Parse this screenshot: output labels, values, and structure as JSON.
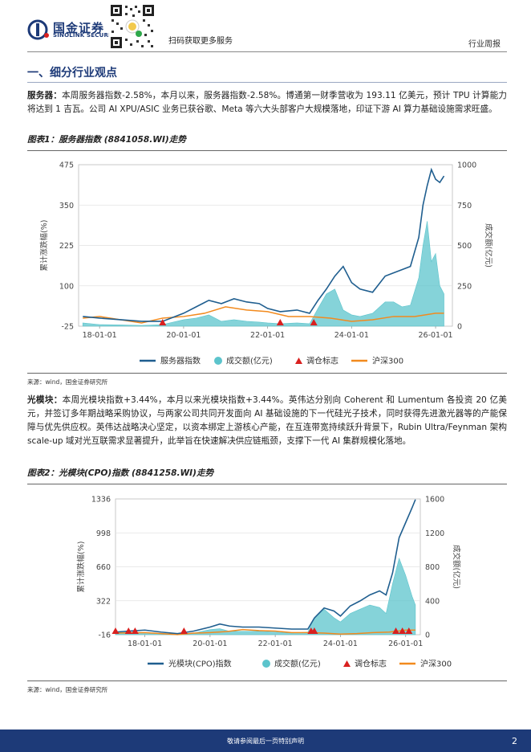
{
  "header": {
    "brand_cn": "国金证券",
    "brand_en": "SINOLINK SECURITIES",
    "scan_text": "扫码获取更多服务",
    "report_type": "行业周报"
  },
  "section": {
    "title": "一、细分行业观点"
  },
  "para1": {
    "lead": "服务器：",
    "text": "本周服务器指数-2.58%，本月以来，服务器指数-2.58%。博通第一财季营收为 193.11 亿美元，预计 TPU 计算能力将达到 1 吉瓦。公司 AI XPU/ASIC 业务已获谷歌、Meta 等六大头部客户大规模落地，印证下游 AI 算力基础设施需求旺盛。"
  },
  "para2": {
    "lead": "光模块：",
    "text": "本周光模块指数+3.44%，本月以来光模块指数+3.44%。英伟达分别向 Coherent 和 Lumentum 各投资 20 亿美元，并签订多年期战略采购协议，与两家公司共同开发面向 AI 基础设施的下一代硅光子技术，同时获得先进激光器等的产能保障与优先供应权。英伟达战略决心坚定，以资本绑定上游核心产能，在互连带宽持续跃升背景下，Rubin Ultra/Feynman 架构 scale-up 域对光互联需求显著提升，此举旨在快速解决供应链瓶颈，支撑下一代 AI 集群规模化落地。"
  },
  "source_label": "来源：wind，国金证券研究所",
  "footer": {
    "disclaimer": "敬请参阅最后一页特别声明",
    "page": "2"
  },
  "colors": {
    "index_line": "#1f5e8f",
    "volume_area": "#5cc4cc",
    "hs300_line": "#f28a1e",
    "marker": "#d9201f",
    "brand": "#1d3a78"
  },
  "chart_data": [
    {
      "type": "line",
      "title": "图表1：服务器指数 (8841058.WI)走势",
      "ylabel": "累计涨跌幅(%)",
      "y2label": "成交额(亿元)",
      "ylim": [
        -25,
        475
      ],
      "y2lim": [
        0,
        1000
      ],
      "yticks": [
        "-25",
        "100",
        "225",
        "350",
        "475"
      ],
      "y2ticks": [
        "0",
        "250",
        "500",
        "750",
        "1000"
      ],
      "xlim": [
        2017.5,
        2026.4
      ],
      "xticks": [
        2018,
        2020,
        2022,
        2024,
        2026
      ],
      "xticklabels": [
        "18-01-01",
        "20-01-01",
        "22-01-01",
        "24-01-01",
        "26-01-01"
      ],
      "legend": [
        "服务器指数",
        "成交额(亿元)",
        "调仓标志",
        "沪深300"
      ],
      "series": [
        {
          "name": "服务器指数",
          "axis": "left",
          "x": [
            2017.6,
            2018.0,
            2018.5,
            2019.0,
            2019.5,
            2020.0,
            2020.3,
            2020.6,
            2020.9,
            2021.2,
            2021.5,
            2021.8,
            2022.0,
            2022.3,
            2022.7,
            2023.0,
            2023.2,
            2023.4,
            2023.6,
            2023.8,
            2024.0,
            2024.2,
            2024.5,
            2024.8,
            2025.0,
            2025.2,
            2025.4,
            2025.6,
            2025.7,
            2025.8,
            2025.9,
            2026.0,
            2026.1,
            2026.2
          ],
          "values": [
            5,
            0,
            -5,
            -10,
            -10,
            15,
            35,
            55,
            45,
            60,
            50,
            45,
            30,
            20,
            25,
            15,
            55,
            90,
            130,
            160,
            110,
            90,
            80,
            130,
            140,
            150,
            160,
            250,
            350,
            410,
            460,
            430,
            420,
            440
          ]
        },
        {
          "name": "成交额(亿元)",
          "axis": "right",
          "x": [
            2017.6,
            2018.0,
            2018.5,
            2019.0,
            2019.5,
            2020.0,
            2020.3,
            2020.6,
            2020.9,
            2021.2,
            2021.5,
            2021.8,
            2022.0,
            2022.3,
            2022.7,
            2023.0,
            2023.2,
            2023.4,
            2023.6,
            2023.8,
            2024.0,
            2024.2,
            2024.5,
            2024.8,
            2025.0,
            2025.2,
            2025.4,
            2025.6,
            2025.7,
            2025.8,
            2025.9,
            2026.0,
            2026.1,
            2026.2
          ],
          "values": [
            20,
            10,
            8,
            5,
            10,
            40,
            50,
            70,
            30,
            40,
            30,
            25,
            20,
            15,
            20,
            15,
            110,
            200,
            230,
            100,
            70,
            60,
            80,
            150,
            150,
            120,
            130,
            300,
            500,
            650,
            400,
            450,
            250,
            200
          ]
        },
        {
          "name": "沪深300",
          "axis": "left",
          "x": [
            2017.6,
            2018.0,
            2018.5,
            2019.0,
            2019.5,
            2020.0,
            2020.5,
            2021.0,
            2021.5,
            2022.0,
            2022.5,
            2023.0,
            2023.5,
            2024.0,
            2024.5,
            2025.0,
            2025.5,
            2026.0,
            2026.2
          ],
          "values": [
            0,
            5,
            -5,
            -15,
            0,
            5,
            15,
            35,
            25,
            20,
            5,
            5,
            0,
            -10,
            -5,
            5,
            5,
            15,
            15
          ]
        }
      ],
      "markers": [
        2019.5,
        2022.3,
        2023.1
      ]
    },
    {
      "type": "line",
      "title": "图表2：光模块(CPO)指数 (8841258.WI)走势",
      "ylabel": "累计涨跌幅(%)",
      "y2label": "成交额(亿元)",
      "ylim": [
        -16,
        1336
      ],
      "y2lim": [
        0,
        1600
      ],
      "yticks": [
        "-16",
        "322",
        "660",
        "998",
        "1336"
      ],
      "y2ticks": [
        "0",
        "400",
        "800",
        "1200",
        "1600"
      ],
      "xlim": [
        2017.1,
        2026.45
      ],
      "xticks": [
        2018,
        2020,
        2022,
        2024,
        2026
      ],
      "xticklabels": [
        "18-01-01",
        "20-01-01",
        "22-01-01",
        "24-01-01",
        "26-01-01"
      ],
      "legend": [
        "光模块(CPO)指数",
        "成交额(亿元)",
        "调仓标志",
        "沪深300"
      ],
      "series": [
        {
          "name": "光模块(CPO)指数",
          "axis": "left",
          "x": [
            2017.1,
            2017.5,
            2018.0,
            2018.5,
            2019.0,
            2019.5,
            2020.0,
            2020.3,
            2020.6,
            2021.0,
            2021.5,
            2022.0,
            2022.5,
            2023.0,
            2023.2,
            2023.5,
            2023.8,
            2024.0,
            2024.3,
            2024.6,
            2024.9,
            2025.2,
            2025.4,
            2025.6,
            2025.8,
            2026.0,
            2026.2,
            2026.3
          ],
          "values": [
            10,
            20,
            30,
            10,
            -5,
            20,
            60,
            90,
            70,
            60,
            60,
            50,
            40,
            40,
            150,
            250,
            220,
            170,
            270,
            320,
            380,
            420,
            380,
            600,
            950,
            1100,
            1250,
            1330
          ]
        },
        {
          "name": "成交额(亿元)",
          "axis": "right",
          "x": [
            2017.1,
            2017.5,
            2018.0,
            2018.5,
            2019.0,
            2019.5,
            2020.0,
            2020.3,
            2020.6,
            2021.0,
            2021.5,
            2022.0,
            2022.5,
            2023.0,
            2023.2,
            2023.5,
            2023.8,
            2024.0,
            2024.3,
            2024.6,
            2024.9,
            2025.2,
            2025.4,
            2025.6,
            2025.8,
            2026.0,
            2026.2,
            2026.3
          ],
          "values": [
            20,
            30,
            25,
            15,
            10,
            20,
            60,
            70,
            40,
            40,
            40,
            30,
            20,
            30,
            200,
            300,
            200,
            150,
            250,
            300,
            350,
            320,
            250,
            600,
            900,
            700,
            450,
            350
          ]
        },
        {
          "name": "沪深300",
          "axis": "left",
          "x": [
            2017.1,
            2018.0,
            2018.5,
            2019.0,
            2019.5,
            2020.0,
            2020.5,
            2021.0,
            2021.5,
            2022.0,
            2022.5,
            2023.0,
            2023.5,
            2024.0,
            2024.5,
            2025.0,
            2025.5,
            2026.0,
            2026.3
          ],
          "values": [
            0,
            5,
            -5,
            -15,
            0,
            5,
            15,
            35,
            25,
            20,
            5,
            5,
            0,
            -10,
            -5,
            5,
            10,
            30,
            30
          ]
        }
      ],
      "markers": [
        2017.1,
        2017.5,
        2017.7,
        2019.2,
        2023.1,
        2023.2,
        2025.7,
        2025.9,
        2026.1
      ]
    }
  ]
}
